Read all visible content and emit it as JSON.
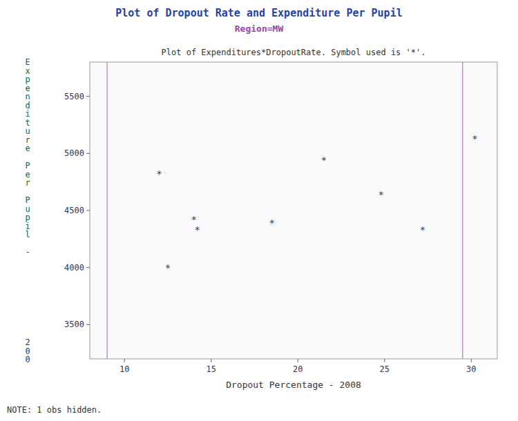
{
  "chart_data": {
    "type": "scatter",
    "title": "Plot of Dropout Rate and Expenditure Per Pupil",
    "subtitle": "Region=MW",
    "annotations": [
      "Plot of Expenditures*DropoutRate.  Symbol used is '*'.",
      "200",
      "NOTE: 1 obs hidden."
    ],
    "xlabel": "Dropout Percentage - 2008",
    "ylabel": "Expenditure Per Pupil -",
    "x": [
      12.0,
      12.5,
      14.0,
      14.2,
      18.5,
      21.5,
      24.8,
      27.2,
      30.2
    ],
    "values": [
      4820,
      4000,
      4420,
      4330,
      4390,
      4940,
      4640,
      4330,
      5130
    ],
    "marker": "*",
    "color": "#333355",
    "vlines": [
      9.0,
      29.5
    ],
    "xlim": [
      8,
      31.5
    ],
    "ylim": [
      3200,
      5800
    ],
    "xticks": [
      10,
      15,
      20,
      25,
      30
    ],
    "yticks": [
      3500,
      4000,
      4500,
      5000,
      5500
    ],
    "grid": false
  }
}
